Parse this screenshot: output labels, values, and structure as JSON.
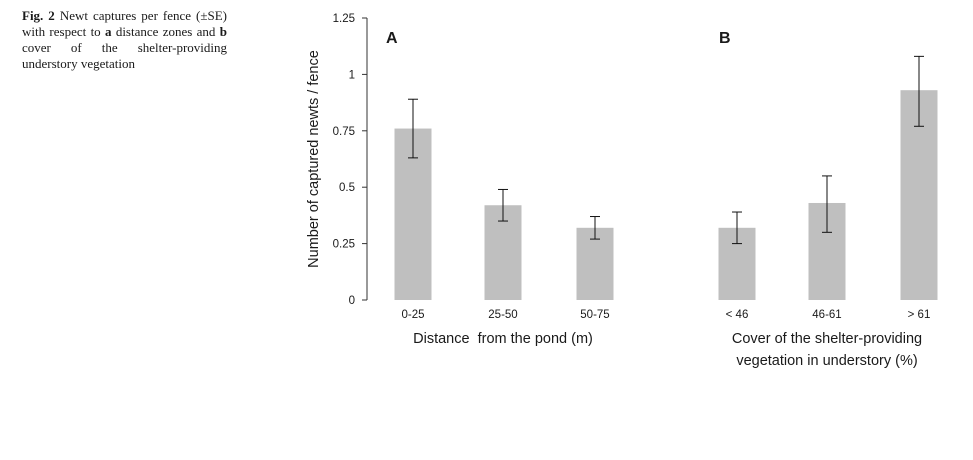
{
  "caption": {
    "figure_label": "Fig. 2",
    "parts": [
      "Newt captures per fence (±SE) with respect to ",
      "a",
      " distance zones and ",
      "b",
      " cover of the shelter-providing understory vegetation"
    ]
  },
  "colors": {
    "bar": "#bfbfbf",
    "axis": "#333333",
    "text": "#1a1a1a"
  },
  "chart_data": {
    "type": "bar",
    "ylabel": "Number of captured newts / fence",
    "ylim": [
      0,
      1.25
    ],
    "yticks": [
      "0",
      "0.25",
      "0.5",
      "0.75",
      "1",
      "1.25"
    ],
    "ytick_values": [
      0,
      0.25,
      0.5,
      0.75,
      1,
      1.25
    ],
    "panels": [
      {
        "label": "A",
        "xlabel_lines": [
          "Distance  from the pond (m)"
        ],
        "categories": [
          "0-25",
          "25-50",
          "50-75"
        ],
        "values": [
          0.76,
          0.42,
          0.32
        ],
        "error_low": [
          0.63,
          0.35,
          0.27
        ],
        "error_high": [
          0.89,
          0.49,
          0.37
        ]
      },
      {
        "label": "B",
        "xlabel_lines": [
          "Cover of the shelter-providing",
          "vegetation in understory (%)"
        ],
        "categories": [
          "< 46",
          "46-61",
          "> 61"
        ],
        "values": [
          0.32,
          0.43,
          0.93
        ],
        "error_low": [
          0.25,
          0.3,
          0.77
        ],
        "error_high": [
          0.39,
          0.55,
          1.08
        ]
      }
    ]
  }
}
